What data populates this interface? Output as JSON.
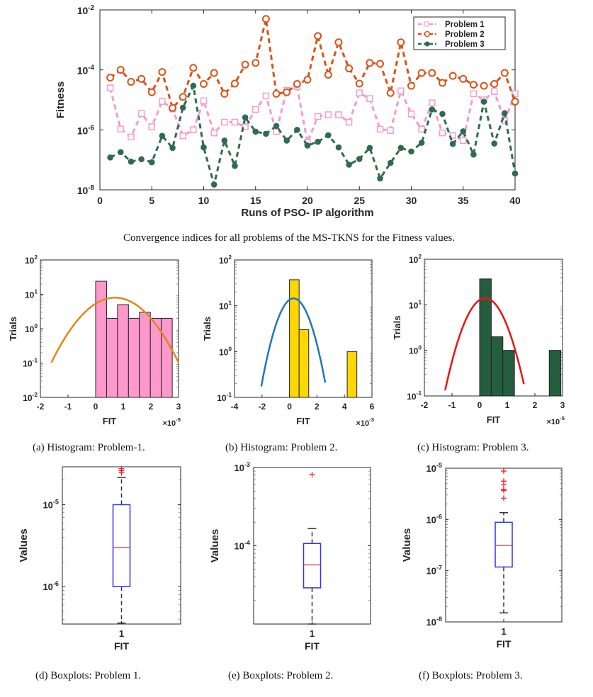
{
  "captions": {
    "main": "Convergence indices for all problems of the MS-TKNS for the Fitness values.",
    "a": "(a) Histogram: Problem-1.",
    "b": "(b) Histogram: Problem 2.",
    "c": "(c) Histogram: Problem 3.",
    "d": "(d) Boxplots: Problem 1.",
    "e": "(e) Boxplots: Problem 2.",
    "f": "(f) Boxplots: Problem 3."
  },
  "chart_data": [
    {
      "type": "line",
      "xlabel": "Runs of PSO- IP algorithm",
      "ylabel": "Fitness",
      "xlim": [
        0,
        40
      ],
      "xticks": [
        0,
        5,
        10,
        15,
        20,
        25,
        30,
        35,
        40
      ],
      "ylim": [
        1e-08,
        0.01
      ],
      "yscale": "log",
      "yticks_exp": [
        -8,
        -6,
        -4,
        -2
      ],
      "legend": "top-right",
      "x": [
        1,
        2,
        3,
        4,
        5,
        6,
        7,
        8,
        9,
        10,
        11,
        12,
        13,
        14,
        15,
        16,
        17,
        18,
        19,
        20,
        21,
        22,
        23,
        24,
        25,
        26,
        27,
        28,
        29,
        30,
        31,
        32,
        33,
        34,
        35,
        36,
        37,
        38,
        39,
        40
      ],
      "series": [
        {
          "name": "Problem 1",
          "color": "#f59bcb",
          "marker": "square",
          "values": [
            2.5e-05,
            1.07e-06,
            5.8e-07,
            3.5e-06,
            1.26e-06,
            8.9e-06,
            5e-06,
            6.3e-07,
            1e-06,
            9.3e-06,
            7.9e-07,
            1.8e-06,
            1.8e-06,
            1.26e-06,
            4.8e-06,
            1.35e-05,
            8.7e-07,
            2.1e-05,
            2.75e-05,
            3.8e-07,
            2.8e-06,
            3.2e-06,
            3.2e-06,
            1.8e-06,
            1.7e-05,
            1.1e-05,
            1.05e-06,
            9.5e-07,
            2e-05,
            3.4e-06,
            1.05e-06,
            7.9e-06,
            7.9e-07,
            6.6e-07,
            4.4e-07,
            1.6e-05,
            1e-05,
            1.9e-05,
            2e-06,
            1.6e-05
          ]
        },
        {
          "name": "Problem 2",
          "color": "#d95319",
          "marker": "circle",
          "values": [
            5.5e-05,
            0.0001,
            4e-05,
            5e-05,
            1.8e-05,
            8.5e-05,
            5.4e-06,
            1.26e-05,
            0.000117,
            3.4e-05,
            7.9e-05,
            1.6e-05,
            3.5e-05,
            0.00015,
            0.00017,
            0.005,
            1.6e-05,
            1.8e-05,
            3.4e-05,
            4.7e-05,
            0.00135,
            6.9e-05,
            0.00083,
            0.000112,
            3.5e-05,
            0.00017,
            0.00016,
            1.7e-05,
            0.00083,
            2.95e-05,
            7.9e-05,
            7.9e-05,
            3.7e-05,
            6.3e-05,
            5e-05,
            3.2e-05,
            2.95e-05,
            3.4e-05,
            7.9e-05,
            8.7e-06
          ]
        },
        {
          "name": "Problem 3",
          "color": "#2e6b4f",
          "marker": "filled-circle",
          "values": [
            1.2e-07,
            1.8e-07,
            8.7e-08,
            1.05e-07,
            8.3e-08,
            6.3e-07,
            2.5e-07,
            5.5e-06,
            2.95e-05,
            2.6e-07,
            1.5e-08,
            4.4e-07,
            6.3e-08,
            2.6e-06,
            8.7e-07,
            7.4e-07,
            1.35e-06,
            4.4e-07,
            1e-06,
            3e-07,
            4e-07,
            6.6e-07,
            2.6e-07,
            6.9e-08,
            1.07e-07,
            2.5e-07,
            2.4e-08,
            7.9e-08,
            2.5e-07,
            1.9e-07,
            3.7e-07,
            4.8e-06,
            3.4e-06,
            3.4e-07,
            8.9e-07,
            1.5e-07,
            8.7e-06,
            3.5e-07,
            3.6e-06,
            3.5e-08
          ]
        }
      ]
    },
    {
      "type": "bar",
      "subtype": "histogram",
      "xlabel": "FIT",
      "ylabel": "Trials",
      "multiplier": "×10",
      "multiplier_exp": "-5",
      "xlim": [
        -2,
        3
      ],
      "xticks": [
        -2,
        -1,
        0,
        1,
        2,
        3
      ],
      "ylim": [
        0.01,
        100.0
      ],
      "yscale": "log",
      "yticks_exp": [
        -2,
        -1,
        0,
        1,
        2
      ],
      "bin_edges": [
        0,
        0.396,
        0.792,
        1.188,
        1.584,
        1.98,
        2.376,
        2.772
      ],
      "counts": [
        24,
        2,
        5,
        2,
        3,
        2,
        2
      ],
      "bar_color": "#ff99cc",
      "fit_color": "#e0861a",
      "fit": {
        "type": "normal",
        "mean": 0.7,
        "sigma": 0.78,
        "peak": 8,
        "range": [
          -1.6,
          3.0
        ]
      }
    },
    {
      "type": "bar",
      "subtype": "histogram",
      "xlabel": "FIT",
      "ylabel": "Trials",
      "multiplier": "×10",
      "multiplier_exp": "-3",
      "xlim": [
        -4,
        6
      ],
      "xticks": [
        -4,
        -2,
        0,
        2,
        4,
        6
      ],
      "ylim": [
        0.1,
        100.0
      ],
      "yscale": "log",
      "yticks_exp": [
        -1,
        0,
        1,
        2
      ],
      "bin_edges": [
        0,
        0.7,
        1.4,
        2.1,
        2.8,
        3.5,
        4.2,
        4.9
      ],
      "counts": [
        37,
        3,
        0,
        0,
        0,
        0,
        1
      ],
      "bar_color": "#ffd700",
      "fit_color": "#1f77b4",
      "fit": {
        "type": "normal",
        "mean": 0.3,
        "sigma": 0.79,
        "peak": 14.5,
        "range": [
          -2.05,
          2.6
        ]
      }
    },
    {
      "type": "bar",
      "subtype": "histogram",
      "xlabel": "FIT",
      "ylabel": "Trials",
      "multiplier": "×10",
      "multiplier_exp": "-5",
      "xlim": [
        -2,
        3
      ],
      "xticks": [
        -2,
        -1,
        0,
        1,
        2,
        3
      ],
      "ylim": [
        0.1,
        100.0
      ],
      "yscale": "log",
      "yticks_exp": [
        -1,
        0,
        1,
        2
      ],
      "bin_edges": [
        0,
        0.42,
        0.84,
        1.26,
        1.68,
        2.1,
        2.52,
        2.94
      ],
      "counts": [
        37,
        2,
        1,
        0,
        0,
        0,
        1
      ],
      "bar_color": "#255e3f",
      "fit_color": "#ee1111",
      "fit": {
        "type": "normal",
        "mean": 0.2,
        "sigma": 0.475,
        "peak": 14,
        "range": [
          -1.25,
          1.6
        ]
      }
    },
    {
      "type": "boxplot",
      "xlabel": "FIT",
      "ylabel": "Values",
      "xtick": "1",
      "ylim": [
        3.5e-07,
        2.9e-05
      ],
      "yscale": "log",
      "yticks_exp": [
        -6,
        -5
      ],
      "whisker_low": 3.6e-07,
      "q1": 1e-06,
      "median": 3e-06,
      "q3": 1e-05,
      "whisker_high": 2.15e-05,
      "outliers": [
        2.45e-05,
        2.6e-05,
        2.75e-05
      ]
    },
    {
      "type": "boxplot",
      "xlabel": "FIT",
      "ylabel": "Values",
      "xtick": "1",
      "ylim": [
        1e-05,
        0.001
      ],
      "yscale": "log",
      "yticks_exp": [
        -4,
        -3
      ],
      "whisker_low": 1e-05,
      "q1": 2.9e-05,
      "median": 5.7e-05,
      "q3": 0.000107,
      "whisker_high": 0.000166,
      "outliers": [
        0.00081
      ]
    },
    {
      "type": "boxplot",
      "xlabel": "FIT",
      "ylabel": "Values",
      "xtick": "1",
      "ylim": [
        1e-08,
        1e-05
      ],
      "yscale": "log",
      "yticks_exp": [
        -8,
        -7,
        -6,
        -5
      ],
      "whisker_low": 1.5e-08,
      "q1": 1.18e-07,
      "median": 3.1e-07,
      "q3": 8.8e-07,
      "whisker_high": 1.36e-06,
      "outliers": [
        8.8e-06,
        5.6e-06,
        4.8e-06,
        3.9e-06,
        3.7e-06,
        2.6e-06
      ]
    }
  ]
}
